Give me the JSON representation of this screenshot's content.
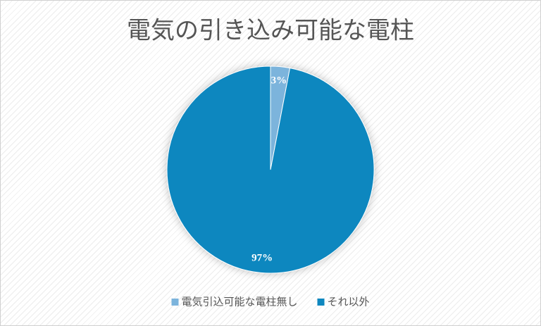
{
  "chart_data": {
    "type": "pie",
    "title": "電気の引き込み可能な電柱",
    "categories": [
      "電気引込可能な電柱無し",
      "それ以外"
    ],
    "values": [
      3,
      97
    ],
    "value_labels": [
      "3%",
      "97%"
    ],
    "colors": [
      "#7cb4dc",
      "#0e87bf"
    ],
    "legend": "bottom"
  }
}
